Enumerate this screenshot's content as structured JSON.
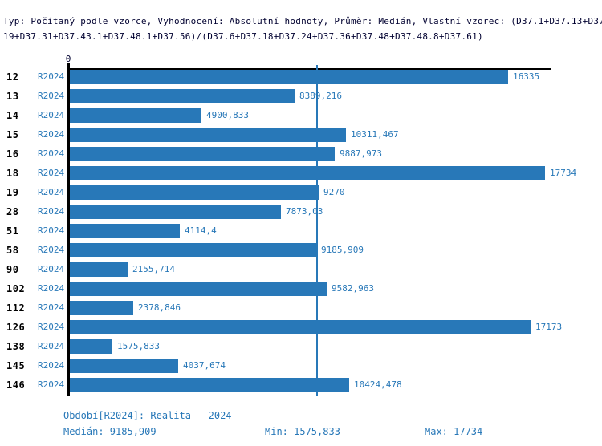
{
  "header": {
    "line1": "Typ: Počítaný podle vzorce, Vyhodnocení: Absolutní hodnoty, Průměr: Medián, Vlastní vzorec: (D37.1+D37.13+D37.",
    "line2": "19+D37.31+D37.43.1+D37.48.1+D37.56)/(D37.6+D37.18+D37.24+D37.36+D37.48+D37.48.8+D37.61)"
  },
  "axis": {
    "zero_tick_label": "0"
  },
  "chart_data": {
    "type": "bar",
    "orientation": "horizontal",
    "series_name": "R2024",
    "categories": [
      "12",
      "13",
      "14",
      "15",
      "16",
      "18",
      "19",
      "28",
      "51",
      "58",
      "90",
      "102",
      "112",
      "126",
      "138",
      "145",
      "146"
    ],
    "values": [
      16335,
      8389.216,
      4900.833,
      10311.467,
      9887.973,
      17734,
      9270,
      7873.03,
      4114.4,
      9185.909,
      2155.714,
      9582.963,
      2378.846,
      17173,
      1575.833,
      4037.674,
      10424.478
    ],
    "value_labels": [
      "16335",
      "8389,216",
      "4900,833",
      "10311,467",
      "9887,973",
      "17734",
      "9270",
      "7873,03",
      "4114,4",
      "9185,909",
      "2155,714",
      "9582,963",
      "2378,846",
      "17173",
      "1575,833",
      "4037,674",
      "10424,478"
    ],
    "median_value": 9185.909,
    "xlim": [
      0,
      18000
    ],
    "grid": "single median gridline",
    "legend_position": "none",
    "bar_color": "#2878b8"
  },
  "footer": {
    "period": "Období[R2024]: Realita – 2024",
    "median": "Medián: 9185,909",
    "min": "Min: 1575,833",
    "max": "Max: 17734"
  },
  "colors": {
    "bar": "#2878b8",
    "blue_text": "#2878b8",
    "header_text": "#000030",
    "axis": "#000000",
    "background": "#ffffff"
  }
}
